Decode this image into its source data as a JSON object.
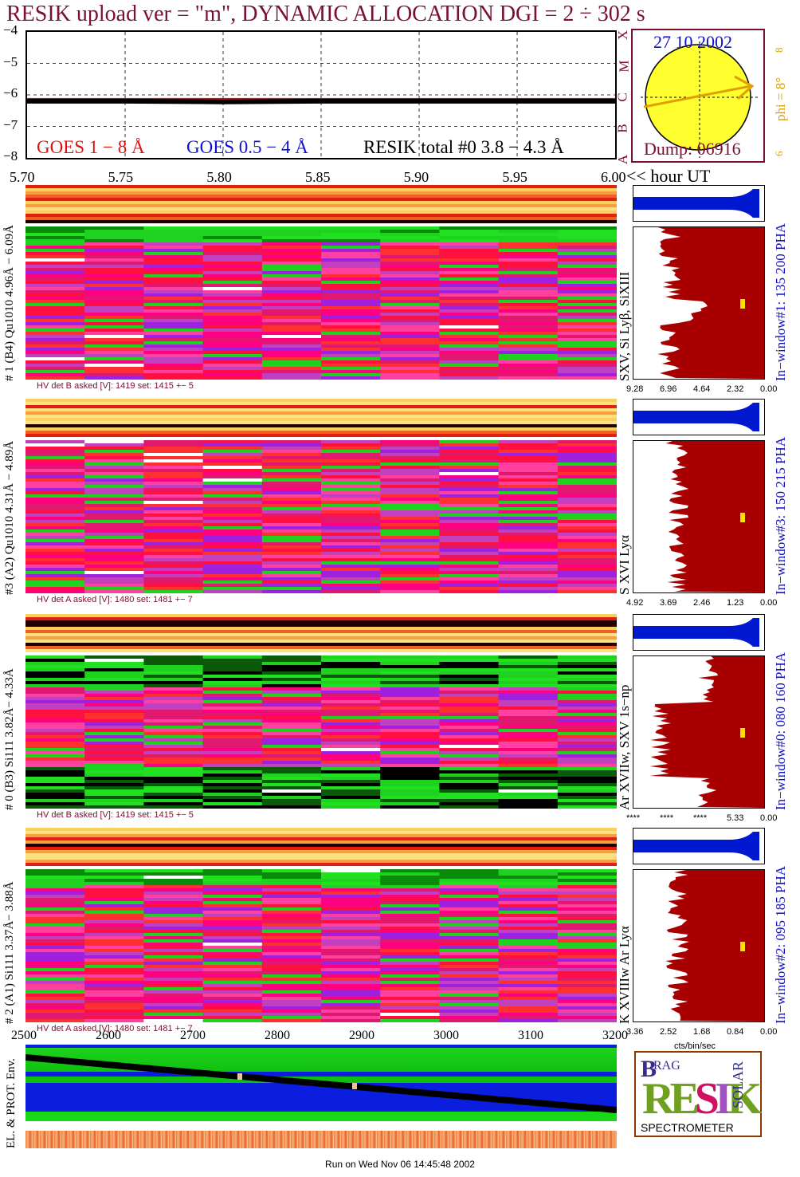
{
  "title": "RESIK upload ver = \"m\", DYNAMIC ALLOCATION  DGI =   2 ÷ 302 s",
  "goes_panel": {
    "y_ticks": [
      "−4",
      "−5",
      "−6",
      "−7",
      "−8"
    ],
    "legend": [
      {
        "label": "GOES 1 − 8 Å",
        "color": "#e01010"
      },
      {
        "label": "GOES 0.5 − 4 Å",
        "color": "#1010d0"
      },
      {
        "label": "RESIK total #0  3.8 − 4.3 Å",
        "color": "#000000"
      }
    ],
    "flare_classes": [
      "X",
      "M",
      "C",
      "B",
      "A"
    ]
  },
  "time_axis": {
    "ticks": [
      "5.70",
      "5.75",
      "5.80",
      "5.85",
      "5.90",
      "5.95",
      "6.00"
    ],
    "unit_label": "<< hour UT"
  },
  "sun": {
    "date": "27 10 2002",
    "phi_label": "phi =  8°",
    "phi_extra": "8",
    "phi_small": "6",
    "dump": "Dump: 06916"
  },
  "channels": [
    {
      "id": "ch1",
      "left_label": "# 1 (B4) Qu1010 4.96Å − 6.09Å",
      "hv": "HV det B asked [V]:  1419 set:  1415  +−    5",
      "line_label": "SXV, Si Lyβ, SiXIII",
      "window_label": "In−window#1:  135 200 PHA",
      "scale": [
        "9.28",
        "6.96",
        "4.64",
        "2.32",
        "0.00"
      ]
    },
    {
      "id": "ch3",
      "left_label": "#3 (A2) Qu1010  4.31Å − 4.89Å",
      "hv": "HV det A asked [V]:  1480 set:  1481  +−    7",
      "line_label": "S XVI Lyα",
      "window_label": "In−window#3:  150 215 PHA",
      "scale": [
        "4.92",
        "3.69",
        "2.46",
        "1.23",
        "0.00"
      ]
    },
    {
      "id": "ch0",
      "left_label": "# 0 (B3) Si111  3.82Å− 4.33Å",
      "hv": "HV det B asked [V]:  1419 set:  1415  +−    5",
      "line_label": "Ar XVIIw, SXV 1s−np",
      "window_label": "In−window#0:  080 160 PHA",
      "scale": [
        "****",
        "****",
        "****",
        "5.33",
        "0.00"
      ]
    },
    {
      "id": "ch2",
      "left_label": "# 2 (A1) Si111  3.37Å− 3.88Å",
      "hv": "HV det A asked [V]:  1480 set:  1481  +−    7",
      "line_label": "K XVIIIw  Ar Lyα",
      "window_label": "In−window#2:  095 185 PHA",
      "scale": [
        "3.36",
        "2.52",
        "1.68",
        "0.84",
        "0.00"
      ]
    }
  ],
  "pha_unit": "cts/bin/sec",
  "bottom_axis": {
    "ticks": [
      "2500",
      "2600",
      "2700",
      "2800",
      "2900",
      "3000",
      "3100",
      "3200"
    ]
  },
  "env_label": "EL. & PROT. Env.",
  "logo": {
    "letters": [
      "B",
      "R",
      "A",
      "G",
      "R",
      "E",
      "S",
      "I",
      "K",
      "S",
      "O",
      "L",
      "A",
      "R"
    ],
    "caption": "SPECTROMETER"
  },
  "footer": "Run on Wed Nov 06 14:45:48 2002",
  "colors": {
    "frame": "#7a1030",
    "pha_fill": "#a80000",
    "pha_top": "#0018d0"
  },
  "chart_data": [
    {
      "type": "line",
      "x": [
        5.7,
        5.75,
        5.8,
        5.85,
        5.9,
        5.95,
        6.0
      ],
      "xlim": [
        5.7,
        6.0
      ],
      "ylim": [
        -8,
        -4
      ],
      "series": [
        {
          "name": "GOES 1 − 8 Å",
          "values": [
            -6.15,
            -6.15,
            -6.15,
            -6.15,
            -6.15,
            -6.15,
            -6.15
          ]
        },
        {
          "name": "RESIK total #0  3.8 − 4.3 Å",
          "values": [
            -6.2,
            -6.2,
            -6.22,
            -6.2,
            -6.2,
            -6.2,
            -6.2
          ]
        }
      ],
      "grid": true
    }
  ]
}
